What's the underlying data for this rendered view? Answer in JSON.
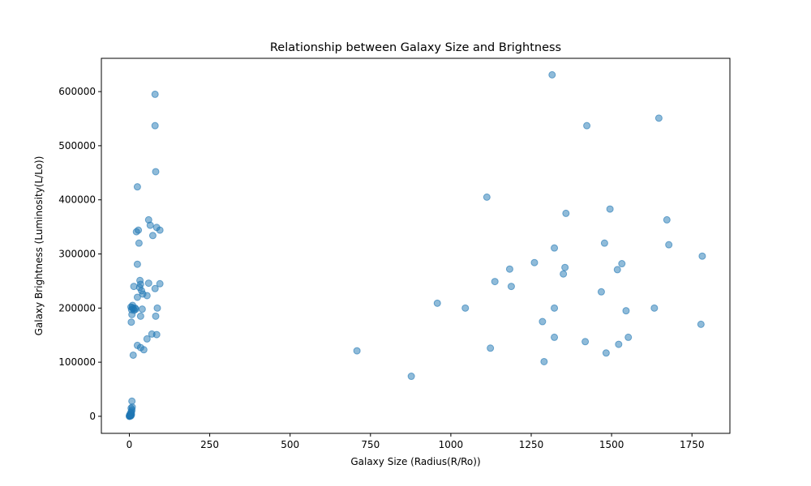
{
  "chart_data": {
    "type": "scatter",
    "title": "Relationship between Galaxy Size and Brightness",
    "xlabel": "Galaxy Size (Radius(R/Ro))",
    "ylabel": "Galaxy Brightness (Luminosity(L/Lo))",
    "xlim": [
      -87,
      1868
    ],
    "ylim": [
      -31500,
      661500
    ],
    "xticks": [
      0,
      250,
      500,
      750,
      1000,
      1250,
      1500,
      1750
    ],
    "yticks": [
      0,
      100000,
      200000,
      300000,
      400000,
      500000,
      600000
    ],
    "xtick_labels": [
      "0",
      "250",
      "500",
      "750",
      "1000",
      "1250",
      "1500",
      "1750"
    ],
    "ytick_labels": [
      "0",
      "100000",
      "200000",
      "300000",
      "400000",
      "500000",
      "600000"
    ],
    "grid": false,
    "point_color": "#1f77b4",
    "series": [
      {
        "points": [
          [
            0,
            0
          ],
          [
            1,
            200
          ],
          [
            2,
            500
          ],
          [
            3,
            1000
          ],
          [
            0.5,
            1500
          ],
          [
            2.5,
            2500
          ],
          [
            4,
            800
          ],
          [
            1.5,
            3000
          ],
          [
            0.8,
            600
          ],
          [
            3.5,
            1800
          ],
          [
            5,
            1200
          ],
          [
            2.2,
            2000
          ],
          [
            6,
            5000
          ],
          [
            7,
            9000
          ],
          [
            8,
            12000
          ],
          [
            5.5,
            15000
          ],
          [
            9,
            17000
          ],
          [
            6.5,
            3000
          ],
          [
            4.5,
            7000
          ],
          [
            8,
            28000
          ],
          [
            5,
            202000
          ],
          [
            7,
            197000
          ],
          [
            9,
            201000
          ],
          [
            10,
            205000
          ],
          [
            12,
            199000
          ],
          [
            8,
            188000
          ],
          [
            6,
            174000
          ],
          [
            15,
            196000
          ],
          [
            18,
            200000
          ],
          [
            20,
            198000
          ],
          [
            12,
            113000
          ],
          [
            14,
            240000
          ],
          [
            22,
            341000
          ],
          [
            25,
            424000
          ],
          [
            28,
            344000
          ],
          [
            30,
            320000
          ],
          [
            25,
            281000
          ],
          [
            33,
            251000
          ],
          [
            35,
            244000
          ],
          [
            32,
            238000
          ],
          [
            38,
            232000
          ],
          [
            42,
            226000
          ],
          [
            25,
            220000
          ],
          [
            55,
            223000
          ],
          [
            60,
            246000
          ],
          [
            40,
            198000
          ],
          [
            35,
            185000
          ],
          [
            25,
            131000
          ],
          [
            35,
            127000
          ],
          [
            45,
            123000
          ],
          [
            55,
            143000
          ],
          [
            70,
            152000
          ],
          [
            60,
            363000
          ],
          [
            65,
            353000
          ],
          [
            73,
            334000
          ],
          [
            85,
            349000
          ],
          [
            95,
            344000
          ],
          [
            80,
            595000
          ],
          [
            80,
            537000
          ],
          [
            82,
            452000
          ],
          [
            80,
            236000
          ],
          [
            95,
            245000
          ],
          [
            87,
            200000
          ],
          [
            82,
            185000
          ],
          [
            85,
            151000
          ],
          [
            708,
            121000
          ],
          [
            877,
            74000
          ],
          [
            958,
            209000
          ],
          [
            1045,
            200000
          ],
          [
            1112,
            405000
          ],
          [
            1123,
            126000
          ],
          [
            1137,
            249000
          ],
          [
            1183,
            272000
          ],
          [
            1188,
            240000
          ],
          [
            1260,
            284000
          ],
          [
            1285,
            175000
          ],
          [
            1290,
            101000
          ],
          [
            1315,
            631000
          ],
          [
            1322,
            311000
          ],
          [
            1322,
            200000
          ],
          [
            1322,
            146000
          ],
          [
            1350,
            263000
          ],
          [
            1355,
            275000
          ],
          [
            1358,
            375000
          ],
          [
            1418,
            138000
          ],
          [
            1423,
            537000
          ],
          [
            1468,
            230000
          ],
          [
            1478,
            320000
          ],
          [
            1483,
            117000
          ],
          [
            1495,
            383000
          ],
          [
            1518,
            271000
          ],
          [
            1522,
            133000
          ],
          [
            1532,
            282000
          ],
          [
            1545,
            195000
          ],
          [
            1552,
            146000
          ],
          [
            1633,
            200000
          ],
          [
            1647,
            551000
          ],
          [
            1672,
            363000
          ],
          [
            1678,
            317000
          ],
          [
            1778,
            170000
          ],
          [
            1782,
            296000
          ]
        ]
      }
    ]
  }
}
